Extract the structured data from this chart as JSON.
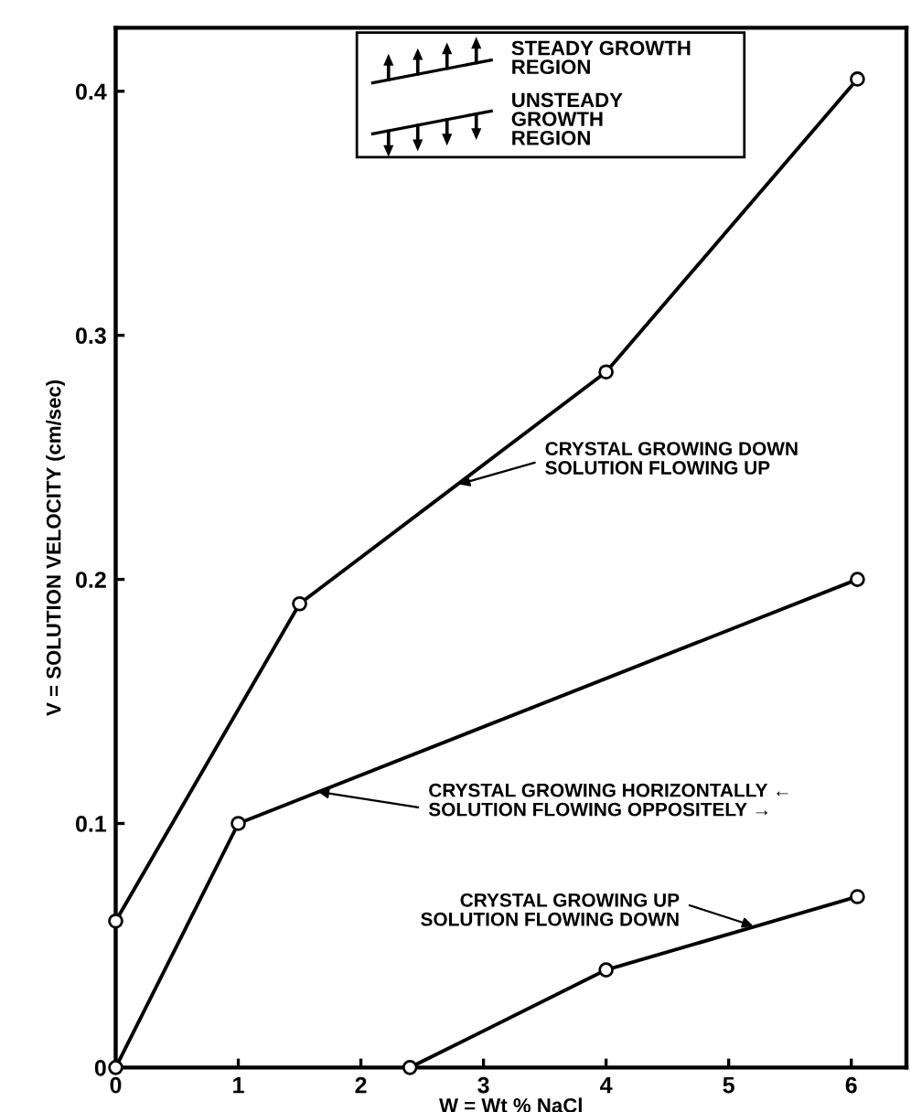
{
  "chart_data": {
    "type": "line",
    "xlabel": "W = Wt % NaCl",
    "ylabel": "V = SOLUTION VELOCITY (cm/sec)",
    "xlim": [
      0,
      6.45
    ],
    "ylim": [
      0,
      0.426
    ],
    "xticks": [
      0,
      1,
      2,
      3,
      4,
      5,
      6
    ],
    "yticks": [
      0,
      0.1,
      0.2,
      0.3,
      0.4
    ],
    "marker": "circle",
    "line_style": "solid",
    "grid": false,
    "legend": false,
    "series": [
      {
        "color": "#000000",
        "x": [
          0,
          1.5,
          4,
          6.05
        ],
        "values": [
          0.06,
          0.19,
          0.285,
          0.405
        ]
      },
      {
        "color": "#000000",
        "x": [
          0,
          1,
          6.05
        ],
        "values": [
          0,
          0.1,
          0.2
        ]
      },
      {
        "color": "#000000",
        "x": [
          2.4,
          4,
          6.05
        ],
        "values": [
          0,
          0.04,
          0.07
        ]
      }
    ],
    "annotations": [
      "STEADY GROWTH\nREGION",
      "UNSTEADY\nGROWTH\nREGION",
      {
        "text": "CRYSTAL GROWING DOWN\nSOLUTION FLOWING UP",
        "x": 2.8,
        "y": 0.239
      },
      {
        "text": "CRYSTAL GROWING HORIZONTALLY ←\nSOLUTION FLOWING OPPOSITELY →",
        "x": 1.65,
        "y": 0.113
      },
      {
        "text": "CRYSTAL GROWING UP\nSOLUTION FLOWING DOWN",
        "x": 5.2,
        "y": 0.058
      }
    ]
  }
}
